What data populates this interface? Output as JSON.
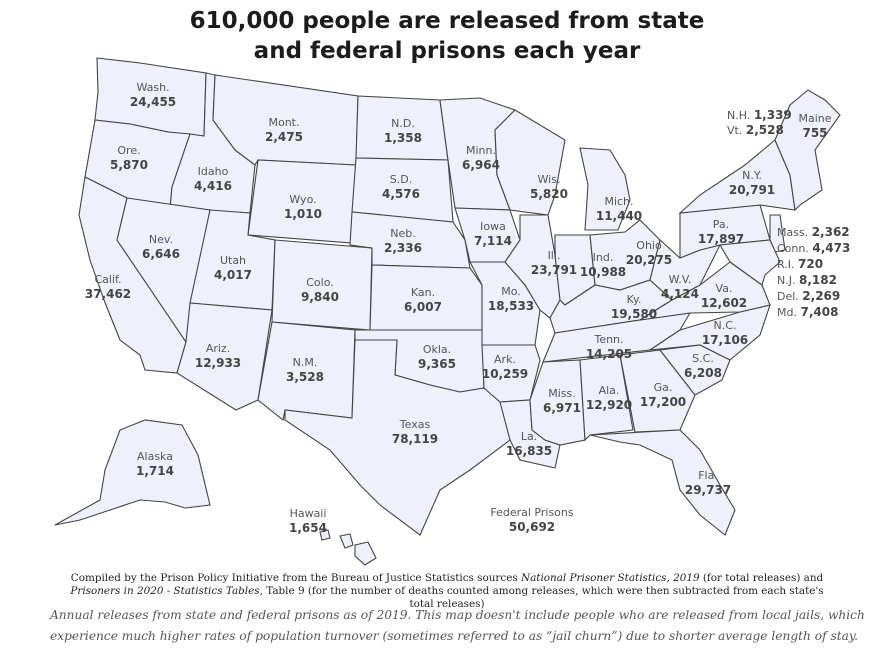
{
  "title_line1": "610,000 people are released from state",
  "title_line2": "and federal prisons each year",
  "states": [
    {
      "id": "wa",
      "name": "Wash.",
      "value": "24,455"
    },
    {
      "id": "or",
      "name": "Ore.",
      "value": "5,870"
    },
    {
      "id": "ca",
      "name": "Calif.",
      "value": "37,462"
    },
    {
      "id": "id",
      "name": "Idaho",
      "value": "4,416"
    },
    {
      "id": "nv",
      "name": "Nev.",
      "value": "6,646"
    },
    {
      "id": "mt",
      "name": "Mont.",
      "value": "2,475"
    },
    {
      "id": "wy",
      "name": "Wyo.",
      "value": "1,010"
    },
    {
      "id": "ut",
      "name": "Utah",
      "value": "4,017"
    },
    {
      "id": "az",
      "name": "Ariz.",
      "value": "12,933"
    },
    {
      "id": "co",
      "name": "Colo.",
      "value": "9,840"
    },
    {
      "id": "nm",
      "name": "N.M.",
      "value": "3,528"
    },
    {
      "id": "nd",
      "name": "N.D.",
      "value": "1,358"
    },
    {
      "id": "sd",
      "name": "S.D.",
      "value": "4,576"
    },
    {
      "id": "ne",
      "name": "Neb.",
      "value": "2,336"
    },
    {
      "id": "ks",
      "name": "Kan.",
      "value": "6,007"
    },
    {
      "id": "ok",
      "name": "Okla.",
      "value": "9,365"
    },
    {
      "id": "tx",
      "name": "Texas",
      "value": "78,119"
    },
    {
      "id": "mn",
      "name": "Minn.",
      "value": "6,964"
    },
    {
      "id": "ia",
      "name": "Iowa",
      "value": "7,114"
    },
    {
      "id": "mo",
      "name": "Mo.",
      "value": "18,533"
    },
    {
      "id": "ar",
      "name": "Ark.",
      "value": "10,259"
    },
    {
      "id": "la",
      "name": "La.",
      "value": "16,835"
    },
    {
      "id": "wi",
      "name": "Wis.",
      "value": "5,820"
    },
    {
      "id": "il",
      "name": "Ill.",
      "value": "23,791"
    },
    {
      "id": "mi",
      "name": "Mich.",
      "value": "11,440"
    },
    {
      "id": "in",
      "name": "Ind.",
      "value": "10,988"
    },
    {
      "id": "oh",
      "name": "Ohio",
      "value": "20,275"
    },
    {
      "id": "ky",
      "name": "Ky.",
      "value": "19,580"
    },
    {
      "id": "tn",
      "name": "Tenn.",
      "value": "14,205"
    },
    {
      "id": "ms",
      "name": "Miss.",
      "value": "6,971"
    },
    {
      "id": "al",
      "name": "Ala.",
      "value": "12,920"
    },
    {
      "id": "ga",
      "name": "Ga.",
      "value": "17,200"
    },
    {
      "id": "fl",
      "name": "Fla.",
      "value": "29,737"
    },
    {
      "id": "sc",
      "name": "S.C.",
      "value": "6,208"
    },
    {
      "id": "nc",
      "name": "N.C.",
      "value": "17,106"
    },
    {
      "id": "va",
      "name": "Va.",
      "value": "12,602"
    },
    {
      "id": "wv",
      "name": "W.V.",
      "value": "4,124"
    },
    {
      "id": "pa",
      "name": "Pa.",
      "value": "17,897"
    },
    {
      "id": "ny",
      "name": "N.Y.",
      "value": "20,791"
    },
    {
      "id": "me",
      "name": "Maine",
      "value": "755"
    },
    {
      "id": "ak",
      "name": "Alaska",
      "value": "1,714"
    },
    {
      "id": "hi",
      "name": "Hawaii",
      "value": "1,654"
    }
  ],
  "northeast_labels": [
    {
      "id": "nh",
      "name": "N.H.",
      "value": "1,339"
    },
    {
      "id": "vt",
      "name": "Vt.",
      "value": "2,528"
    },
    {
      "id": "ma",
      "name": "Mass.",
      "value": "2,362"
    },
    {
      "id": "ct",
      "name": "Conn.",
      "value": "4,473"
    },
    {
      "id": "ri",
      "name": "R.I.",
      "value": "720"
    },
    {
      "id": "nj",
      "name": "N.J.",
      "value": "8,182"
    },
    {
      "id": "de",
      "name": "Del.",
      "value": "2,269"
    },
    {
      "id": "md",
      "name": "Md.",
      "value": "7,408"
    }
  ],
  "federal": {
    "name": "Federal Prisons",
    "value": "50,692"
  },
  "credits": {
    "part1": "Compiled by the Prison Policy Initiative from the Bureau of Justice Statistics sources ",
    "source1": "National Prisoner Statistics, 2019",
    "part2": " (for total releases) and ",
    "source2": "Prisoners in 2020 - Statistics Tables",
    "part3": ", Table 9 (for the number of deaths counted among releases, which were then subtracted from each state's total releases)"
  },
  "caption": "Annual releases from state and federal prisons as of 2019. This map doesn't include people who are released from local jails, which experience much higher rates of population turnover (sometimes referred to as “jail churn”) due to shorter average length of stay.",
  "colors": {
    "state_fill": "#eef1fb",
    "border": "#444444"
  }
}
